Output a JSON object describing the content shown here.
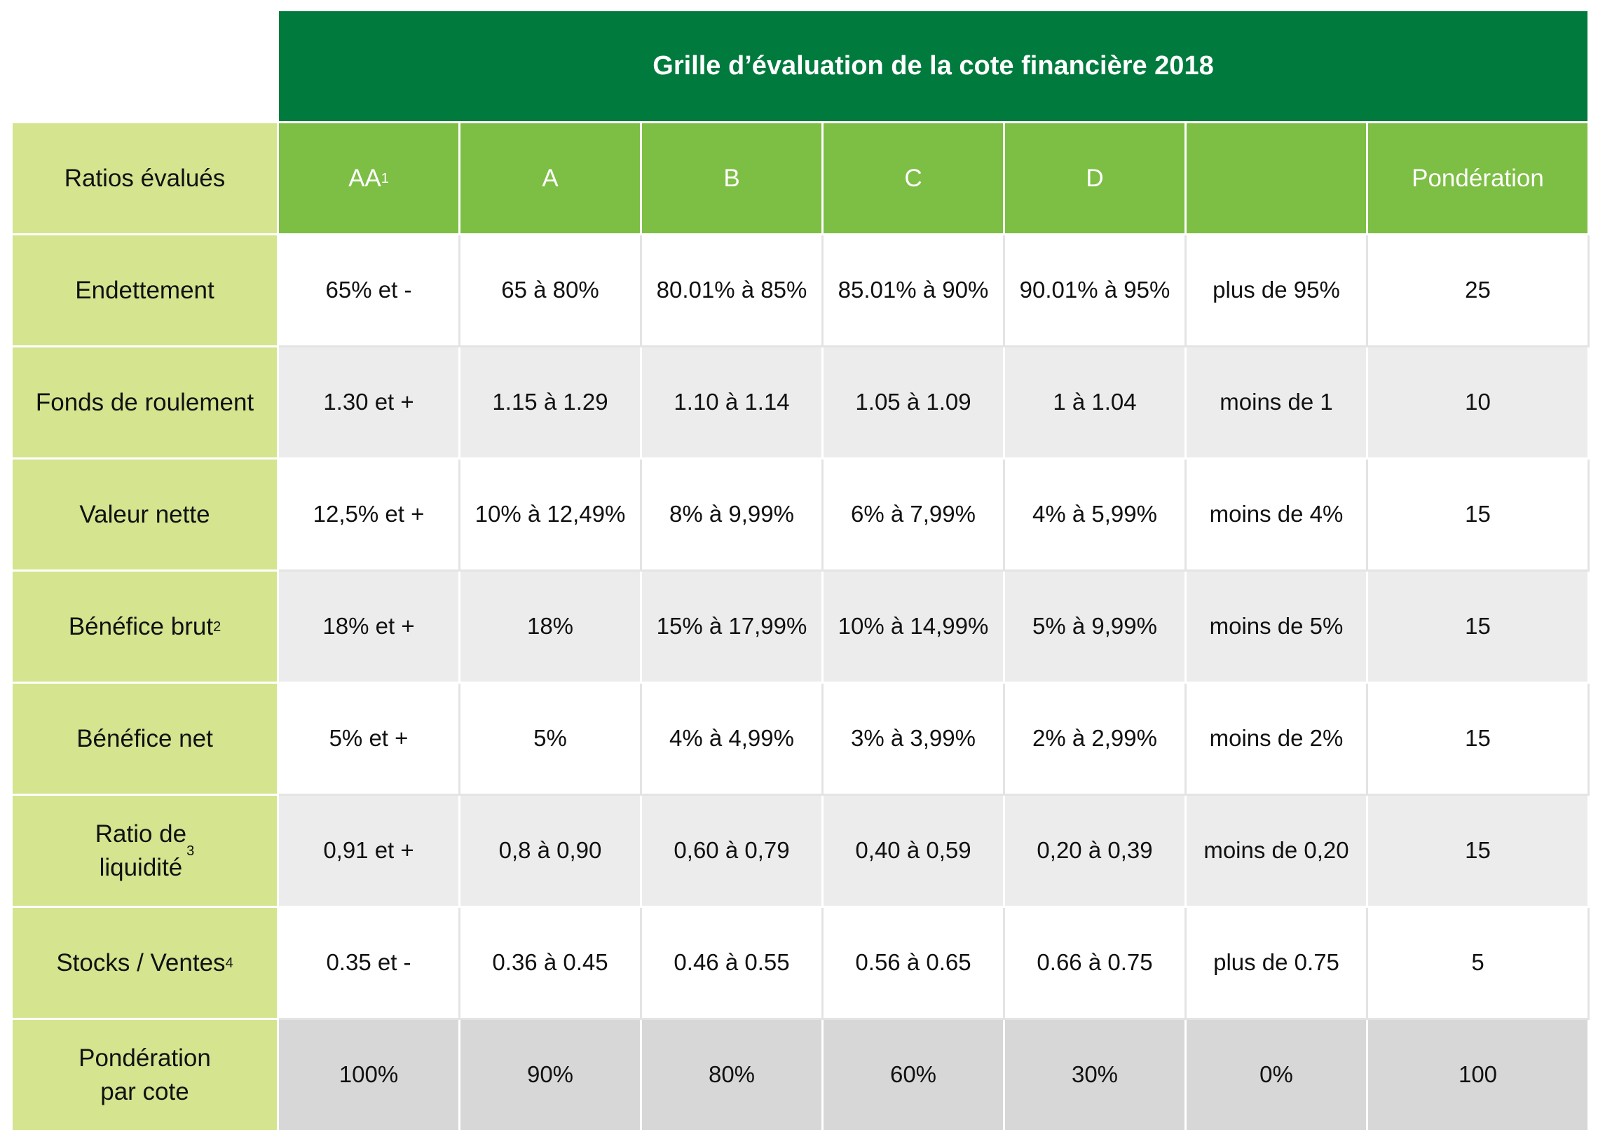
{
  "table": {
    "title": "Grille d’évaluation de la cote financière 2018",
    "header": {
      "first": "Ratios évalués",
      "columns": [
        {
          "label": "AA",
          "sup": "1"
        },
        {
          "label": "A",
          "sup": ""
        },
        {
          "label": "B",
          "sup": ""
        },
        {
          "label": "C",
          "sup": ""
        },
        {
          "label": "D",
          "sup": ""
        },
        {
          "label": "",
          "sup": ""
        },
        {
          "label": "Pondération",
          "sup": ""
        }
      ]
    },
    "rows": [
      {
        "label": "Endettement",
        "sup": "",
        "cells": [
          "65% et -",
          "65 à 80%",
          "80.01% à 85%",
          "85.01% à 90%",
          "90.01% à 95%",
          "plus de 95%",
          "25"
        ]
      },
      {
        "label": "Fonds de roulement",
        "sup": "",
        "cells": [
          "1.30 et +",
          "1.15 à 1.29",
          "1.10 à 1.14",
          "1.05 à 1.09",
          "1 à 1.04",
          "moins de 1",
          "10"
        ]
      },
      {
        "label": "Valeur nette",
        "sup": "",
        "cells": [
          "12,5% et +",
          "10% à 12,49%",
          "8% à 9,99%",
          "6% à 7,99%",
          "4% à 5,99%",
          "moins de 4%",
          "15"
        ]
      },
      {
        "label": "Bénéfice brut ",
        "sup": "2",
        "cells": [
          "18% et +",
          "18%",
          "15% à 17,99%",
          "10% à 14,99%",
          "5% à 9,99%",
          "moins de 5%",
          "15"
        ]
      },
      {
        "label": "Bénéfice net",
        "sup": "",
        "cells": [
          "5% et +",
          "5%",
          "4% à 4,99%",
          "3% à 3,99%",
          "2% à 2,99%",
          "moins de 2%",
          "15"
        ]
      },
      {
        "label": "Ratio de\nliquidité ",
        "sup": "3",
        "cells": [
          "0,91 et +",
          "0,8 à 0,90",
          "0,60 à 0,79",
          "0,40 à 0,59",
          "0,20 à 0,39",
          "moins de 0,20",
          "15"
        ]
      },
      {
        "label": "Stocks / Ventes ",
        "sup": "4",
        "cells": [
          "0.35 et -",
          "0.36 à 0.45",
          "0.46 à 0.55",
          "0.56 à 0.65",
          "0.66 à 0.75",
          "plus de 0.75",
          "5"
        ]
      },
      {
        "label": "Pondération\npar cote",
        "sup": "",
        "cells": [
          "100%",
          "90%",
          "80%",
          "60%",
          "30%",
          "0%",
          "100"
        ]
      }
    ]
  },
  "colors": {
    "title_bg": "#007a3d",
    "header_bg": "#7dbe44",
    "label_bg": "#d4e48f",
    "row_alt_bg": "#ececec",
    "total_bg": "#d7d7d7"
  }
}
